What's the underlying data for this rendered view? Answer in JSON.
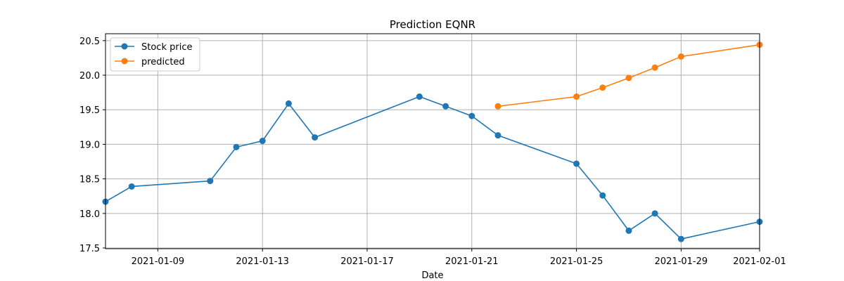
{
  "chart_data": {
    "type": "line",
    "title": "Prediction EQNR",
    "xlabel": "Date",
    "ylabel": "",
    "xlim": [
      "2021-01-07",
      "2021-02-01"
    ],
    "ylim": [
      17.49,
      20.6
    ],
    "x_ticks": [
      "2021-01-09",
      "2021-01-13",
      "2021-01-17",
      "2021-01-21",
      "2021-01-25",
      "2021-01-29",
      "2021-02-01"
    ],
    "y_ticks": [
      17.5,
      18.0,
      18.5,
      19.0,
      19.5,
      20.0,
      20.5
    ],
    "y_tick_labels": [
      "17.5",
      "18.0",
      "18.5",
      "19.0",
      "19.5",
      "20.0",
      "20.5"
    ],
    "grid": true,
    "legend_position": "top-left",
    "series": [
      {
        "name": "Stock price",
        "color": "#1f77b4",
        "marker": "circle",
        "points": [
          {
            "x": "2021-01-07",
            "y": 18.17
          },
          {
            "x": "2021-01-08",
            "y": 18.39
          },
          {
            "x": "2021-01-11",
            "y": 18.47
          },
          {
            "x": "2021-01-12",
            "y": 18.96
          },
          {
            "x": "2021-01-13",
            "y": 19.05
          },
          {
            "x": "2021-01-14",
            "y": 19.59
          },
          {
            "x": "2021-01-15",
            "y": 19.1
          },
          {
            "x": "2021-01-19",
            "y": 19.69
          },
          {
            "x": "2021-01-20",
            "y": 19.55
          },
          {
            "x": "2021-01-21",
            "y": 19.41
          },
          {
            "x": "2021-01-22",
            "y": 19.13
          },
          {
            "x": "2021-01-25",
            "y": 18.72
          },
          {
            "x": "2021-01-26",
            "y": 18.26
          },
          {
            "x": "2021-01-27",
            "y": 17.75
          },
          {
            "x": "2021-01-28",
            "y": 18.0
          },
          {
            "x": "2021-01-29",
            "y": 17.63
          },
          {
            "x": "2021-02-01",
            "y": 17.88
          }
        ]
      },
      {
        "name": "predicted",
        "color": "#ff7f0e",
        "marker": "circle",
        "points": [
          {
            "x": "2021-01-22",
            "y": 19.55
          },
          {
            "x": "2021-01-25",
            "y": 19.69
          },
          {
            "x": "2021-01-26",
            "y": 19.82
          },
          {
            "x": "2021-01-27",
            "y": 19.96
          },
          {
            "x": "2021-01-28",
            "y": 20.11
          },
          {
            "x": "2021-01-29",
            "y": 20.27
          },
          {
            "x": "2021-02-01",
            "y": 20.44
          }
        ]
      }
    ]
  }
}
